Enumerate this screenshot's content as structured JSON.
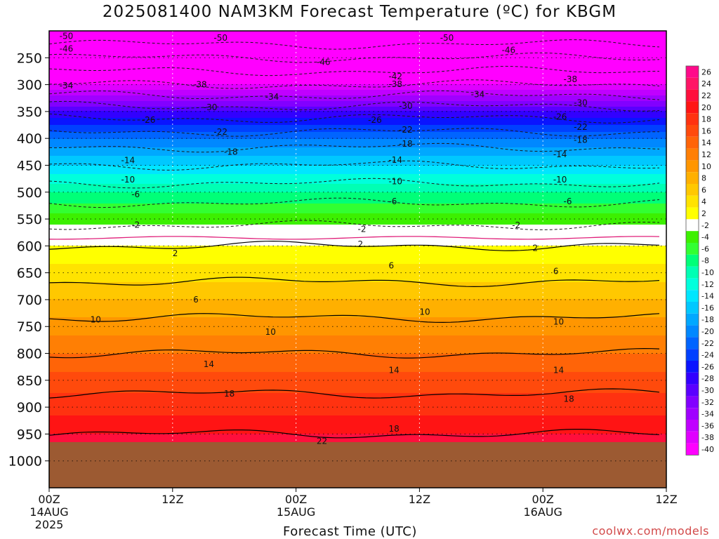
{
  "title": "2025081400 NAM3KM Forecast Temperature (ºC) for KBGM",
  "credit": "coolwx.com/models",
  "chart_data": {
    "type": "heatmap",
    "title": "2025081400 NAM3KM Forecast Temperature (ºC) for KBGM",
    "xlabel": "Forecast Time (UTC)",
    "ylabel": "",
    "x_ticks": [
      {
        "hour": 0,
        "label": "00Z",
        "sub": "14AUG",
        "sub2": "2025"
      },
      {
        "hour": 12,
        "label": "12Z",
        "sub": "",
        "sub2": ""
      },
      {
        "hour": 24,
        "label": "00Z",
        "sub": "15AUG",
        "sub2": ""
      },
      {
        "hour": 36,
        "label": "12Z",
        "sub": "",
        "sub2": ""
      },
      {
        "hour": 48,
        "label": "00Z",
        "sub": "16AUG",
        "sub2": ""
      },
      {
        "hour": 60,
        "label": "12Z",
        "sub": "",
        "sub2": ""
      }
    ],
    "xlim": [
      0,
      60
    ],
    "y_ticks": [
      250,
      300,
      350,
      400,
      450,
      500,
      550,
      600,
      650,
      700,
      750,
      800,
      850,
      900,
      950,
      1000
    ],
    "ylim_hpa": [
      200,
      1050
    ],
    "surface_pressure_hpa": 965,
    "colorbar_levels": [
      26,
      24,
      22,
      20,
      18,
      16,
      14,
      12,
      10,
      8,
      6,
      4,
      2,
      -2,
      -4,
      -6,
      -8,
      -10,
      -12,
      -14,
      -16,
      -18,
      -20,
      -22,
      -24,
      -26,
      -28,
      -30,
      -32,
      -34,
      -36,
      -38,
      -40
    ],
    "colorbar_colors": [
      "#ff0a8a",
      "#ff1466",
      "#ff0f3c",
      "#ff1414",
      "#ff3210",
      "#ff4a0c",
      "#ff6408",
      "#ff7f04",
      "#ff9600",
      "#ffb000",
      "#ffc800",
      "#ffe300",
      "#ffff00",
      "#ffffff",
      "#3cf000",
      "#32ff32",
      "#00ff78",
      "#00ffb4",
      "#00ffdc",
      "#00e6ff",
      "#00c8ff",
      "#00a8ff",
      "#0088ff",
      "#0064ff",
      "#0040ff",
      "#0a14ff",
      "#3200ff",
      "#5a00ff",
      "#8200ff",
      "#a000ff",
      "#c000ff",
      "#e000ff",
      "#ff00ff"
    ],
    "profile": [
      {
        "p": 200,
        "t": -54
      },
      {
        "p": 250,
        "t": -46
      },
      {
        "p": 300,
        "t": -38
      },
      {
        "p": 350,
        "t": -28
      },
      {
        "p": 400,
        "t": -20
      },
      {
        "p": 450,
        "t": -14
      },
      {
        "p": 500,
        "t": -8
      },
      {
        "p": 550,
        "t": -3
      },
      {
        "p": 585,
        "t": 0
      },
      {
        "p": 600,
        "t": 2
      },
      {
        "p": 650,
        "t": 5
      },
      {
        "p": 700,
        "t": 8
      },
      {
        "p": 750,
        "t": 11
      },
      {
        "p": 800,
        "t": 14
      },
      {
        "p": 850,
        "t": 17
      },
      {
        "p": 900,
        "t": 19
      },
      {
        "p": 950,
        "t": 22
      },
      {
        "p": 1000,
        "t": 26
      }
    ],
    "contour_labels": [
      {
        "hour": 1,
        "p": 210,
        "text": "-50"
      },
      {
        "hour": 16,
        "p": 213,
        "text": "-50"
      },
      {
        "hour": 38,
        "p": 213,
        "text": "-50"
      },
      {
        "hour": 1,
        "p": 233,
        "text": "-46"
      },
      {
        "hour": 26,
        "p": 258,
        "text": "-46"
      },
      {
        "hour": 44,
        "p": 236,
        "text": "-46"
      },
      {
        "hour": 33,
        "p": 285,
        "text": "-42"
      },
      {
        "hour": 50,
        "p": 290,
        "text": "-38"
      },
      {
        "hour": 1,
        "p": 302,
        "text": "-34"
      },
      {
        "hour": 14,
        "p": 300,
        "text": "-38"
      },
      {
        "hour": 33,
        "p": 299,
        "text": "-38"
      },
      {
        "hour": 21,
        "p": 323,
        "text": "-34"
      },
      {
        "hour": 41,
        "p": 318,
        "text": "-34"
      },
      {
        "hour": 15,
        "p": 342,
        "text": "-30"
      },
      {
        "hour": 34,
        "p": 340,
        "text": "-30"
      },
      {
        "hour": 51,
        "p": 334,
        "text": "-30"
      },
      {
        "hour": 9,
        "p": 366,
        "text": "-26"
      },
      {
        "hour": 31,
        "p": 366,
        "text": "-26"
      },
      {
        "hour": 49,
        "p": 360,
        "text": "-26"
      },
      {
        "hour": 16,
        "p": 388,
        "text": "-22"
      },
      {
        "hour": 34,
        "p": 384,
        "text": "-22"
      },
      {
        "hour": 51,
        "p": 379,
        "text": "-22"
      },
      {
        "hour": 17,
        "p": 425,
        "text": "-18"
      },
      {
        "hour": 34,
        "p": 410,
        "text": "-18"
      },
      {
        "hour": 51,
        "p": 403,
        "text": "-18"
      },
      {
        "hour": 7,
        "p": 441,
        "text": "-14"
      },
      {
        "hour": 33,
        "p": 440,
        "text": "-14"
      },
      {
        "hour": 49,
        "p": 430,
        "text": "-14"
      },
      {
        "hour": 7,
        "p": 477,
        "text": "-10"
      },
      {
        "hour": 33,
        "p": 480,
        "text": "-10"
      },
      {
        "hour": 49,
        "p": 477,
        "text": "-10"
      },
      {
        "hour": 8,
        "p": 504,
        "text": "-6"
      },
      {
        "hour": 33,
        "p": 517,
        "text": "-6"
      },
      {
        "hour": 50,
        "p": 517,
        "text": "-6"
      },
      {
        "hour": 8,
        "p": 561,
        "text": "-2"
      },
      {
        "hour": 30,
        "p": 569,
        "text": "-2"
      },
      {
        "hour": 45,
        "p": 562,
        "text": "-2"
      },
      {
        "hour": 12,
        "p": 614,
        "text": "2"
      },
      {
        "hour": 30,
        "p": 597,
        "text": "2"
      },
      {
        "hour": 47,
        "p": 604,
        "text": "2"
      },
      {
        "hour": 33,
        "p": 637,
        "text": "6"
      },
      {
        "hour": 49,
        "p": 647,
        "text": "6"
      },
      {
        "hour": 14,
        "p": 700,
        "text": "6"
      },
      {
        "hour": 4,
        "p": 737,
        "text": "10"
      },
      {
        "hour": 21,
        "p": 760,
        "text": "10"
      },
      {
        "hour": 36,
        "p": 723,
        "text": "10"
      },
      {
        "hour": 49,
        "p": 741,
        "text": "10"
      },
      {
        "hour": 15,
        "p": 820,
        "text": "14"
      },
      {
        "hour": 33,
        "p": 831,
        "text": "14"
      },
      {
        "hour": 49,
        "p": 831,
        "text": "14"
      },
      {
        "hour": 17,
        "p": 875,
        "text": "18"
      },
      {
        "hour": 33,
        "p": 940,
        "text": "18"
      },
      {
        "hour": 50,
        "p": 885,
        "text": "18"
      },
      {
        "hour": 26,
        "p": 963,
        "text": "22"
      }
    ]
  }
}
